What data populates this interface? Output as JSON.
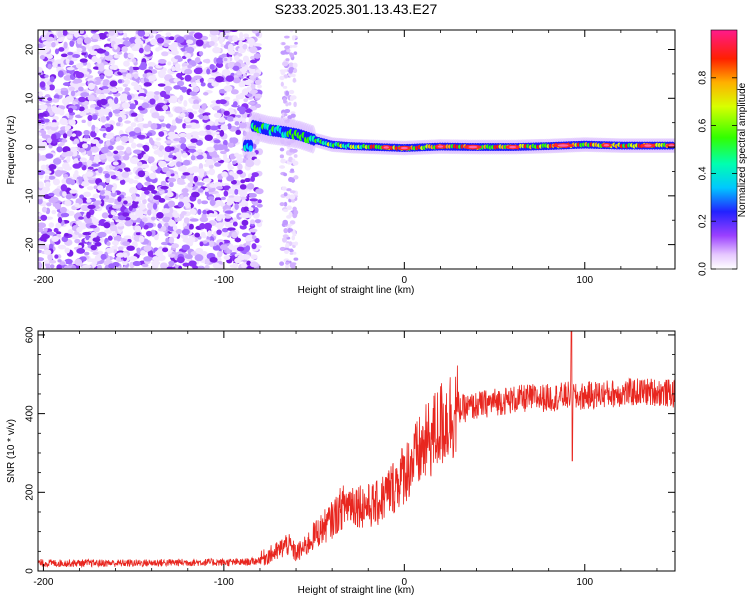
{
  "title": "S233.2025.301.13.43.E27",
  "chart_data": [
    {
      "type": "heatmap",
      "xlabel": "Height of straight line (km)",
      "ylabel": "Frequency (Hz)",
      "xlim": [
        -203,
        150
      ],
      "ylim": [
        -25,
        24
      ],
      "xticks": [
        -200,
        -100,
        0,
        100
      ],
      "yticks": [
        -20,
        -10,
        0,
        10,
        20
      ],
      "colorbar": {
        "label": "Normalized spectral amplitude",
        "range": [
          0,
          1
        ],
        "ticks": [
          "0.0",
          "0.2",
          "0.4",
          "0.6",
          "0.8"
        ]
      },
      "noise_region_km": [
        -203,
        -80
      ],
      "ridge": {
        "x": [
          -85,
          -75,
          -65,
          -58,
          -50,
          -40,
          -30,
          -15,
          0,
          20,
          40,
          60,
          80,
          100,
          120,
          150
        ],
        "freq": [
          4.5,
          3.5,
          3.0,
          2.5,
          1.5,
          0.5,
          0.2,
          0.0,
          -0.2,
          0.1,
          0.0,
          0.0,
          0.2,
          0.5,
          0.3,
          0.3
        ]
      }
    },
    {
      "type": "line",
      "xlabel": "Height of straight line (km)",
      "ylabel": "SNR (10 * v/v)",
      "xlim": [
        -203,
        150
      ],
      "ylim": [
        0,
        610
      ],
      "xticks": [
        -200,
        -100,
        0,
        100
      ],
      "yticks": [
        0,
        200,
        400,
        600
      ],
      "series": [
        {
          "name": "SNR",
          "color": "#e8261f",
          "x": [
            -203,
            -180,
            -150,
            -120,
            -100,
            -90,
            -82,
            -75,
            -70,
            -65,
            -60,
            -55,
            -50,
            -45,
            -40,
            -35,
            -30,
            -25,
            -20,
            -15,
            -10,
            -5,
            0,
            5,
            10,
            15,
            20,
            25,
            30,
            40,
            50,
            60,
            70,
            80,
            90,
            93,
            95,
            100,
            110,
            120,
            130,
            140,
            150
          ],
          "y": [
            20,
            20,
            20,
            22,
            22,
            22,
            25,
            40,
            50,
            70,
            45,
            60,
            90,
            110,
            130,
            160,
            175,
            170,
            165,
            170,
            195,
            220,
            250,
            280,
            310,
            340,
            370,
            395,
            410,
            420,
            430,
            435,
            440,
            440,
            445,
            450,
            440,
            445,
            450,
            452,
            455,
            455,
            450
          ]
        }
      ]
    }
  ]
}
